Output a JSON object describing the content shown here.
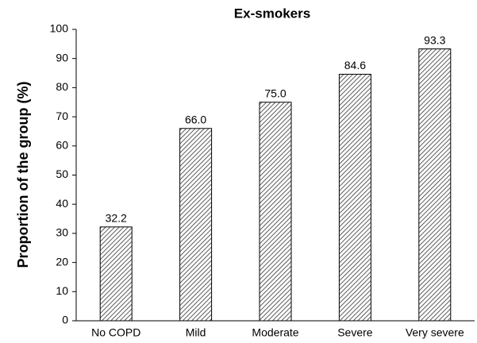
{
  "chart_data": {
    "type": "bar",
    "title": "Ex-smokers",
    "y_label": "Proportion of the group (%)",
    "categories": [
      "No COPD",
      "Mild",
      "Moderate",
      "Severe",
      "Very severe"
    ],
    "values": [
      32.2,
      66.0,
      75.0,
      84.6,
      93.3
    ],
    "value_labels": [
      "32.2",
      "66.0",
      "75.0",
      "84.6",
      "93.3"
    ],
    "color": "#333333",
    "ylim": [
      0,
      100
    ],
    "yticks": [
      0,
      10,
      20,
      30,
      40,
      50,
      60,
      70,
      80,
      90,
      100
    ],
    "grid": false
  }
}
